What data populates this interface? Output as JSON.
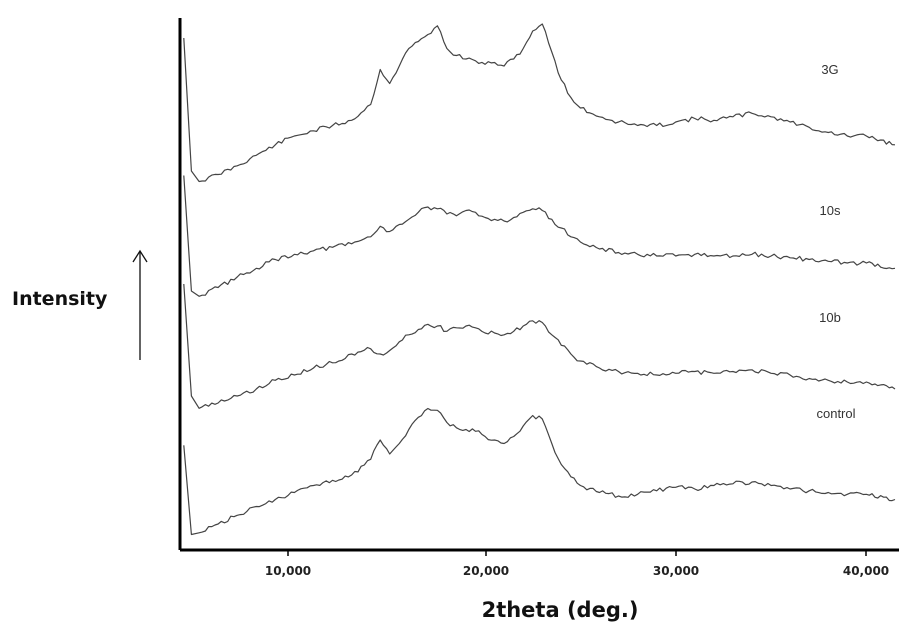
{
  "chart_data": {
    "type": "line",
    "xlabel": "2theta (deg.)",
    "ylabel": "Intensity",
    "xlim": [
      5,
      42.5
    ],
    "x_ticks": [
      10,
      20,
      30,
      40
    ],
    "x_tick_labels": [
      "10,000",
      "20,000",
      "30,000",
      "40,000"
    ],
    "y_scale": "arbitrary, stacked traces",
    "grid": false,
    "legend": "labels at right end of each trace",
    "color": "#444444",
    "series": [
      {
        "name": "3G",
        "offset": 3,
        "x": [
          5.2,
          5.6,
          6.0,
          7.0,
          8.0,
          9.0,
          10.0,
          11.0,
          12.0,
          13.0,
          14.0,
          15.0,
          15.5,
          16.0,
          16.5,
          17.0,
          17.5,
          18.0,
          18.5,
          19.0,
          19.5,
          20.0,
          20.5,
          21.0,
          21.5,
          22.0,
          22.5,
          23.0,
          23.5,
          24.0,
          24.5,
          25.0,
          25.5,
          26.0,
          27.0,
          28.0,
          29.0,
          30.0,
          31.0,
          32.0,
          33.0,
          34.0,
          35.0,
          36.0,
          37.0,
          38.0,
          39.0,
          40.0,
          41.0,
          42.5
        ],
        "y": [
          420,
          40,
          10,
          30,
          55,
          85,
          115,
          140,
          155,
          170,
          185,
          230,
          330,
          290,
          340,
          390,
          410,
          430,
          455,
          390,
          370,
          360,
          355,
          345,
          350,
          340,
          360,
          390,
          440,
          460,
          380,
          300,
          250,
          220,
          195,
          180,
          170,
          170,
          180,
          190,
          185,
          195,
          205,
          195,
          180,
          165,
          150,
          140,
          140,
          115
        ]
      },
      {
        "name": "10s",
        "offset": 2,
        "x": [
          5.2,
          5.6,
          6.0,
          7.0,
          8.0,
          9.0,
          10.0,
          11.0,
          12.0,
          13.0,
          14.0,
          15.0,
          15.5,
          16.0,
          16.5,
          17.0,
          17.5,
          18.0,
          18.5,
          19.0,
          19.5,
          20.0,
          20.5,
          21.0,
          21.5,
          22.0,
          22.5,
          23.0,
          23.5,
          24.0,
          24.5,
          25.0,
          25.5,
          26.0,
          27.0,
          28.0,
          29.0,
          30.0,
          31.0,
          32.0,
          33.0,
          34.0,
          35.0,
          36.0,
          37.0,
          38.0,
          39.0,
          40.0,
          41.0,
          42.5
        ],
        "y": [
          350,
          20,
          5,
          30,
          60,
          85,
          110,
          125,
          135,
          145,
          155,
          175,
          205,
          190,
          210,
          225,
          245,
          260,
          255,
          240,
          235,
          250,
          245,
          230,
          225,
          220,
          230,
          245,
          255,
          250,
          225,
          200,
          175,
          160,
          140,
          130,
          125,
          120,
          120,
          125,
          120,
          120,
          125,
          120,
          115,
          110,
          105,
          100,
          100,
          85
        ]
      },
      {
        "name": "10b",
        "offset": 1,
        "x": [
          5.2,
          5.6,
          6.0,
          7.0,
          8.0,
          9.0,
          10.0,
          11.0,
          12.0,
          13.0,
          14.0,
          15.0,
          15.5,
          16.0,
          16.5,
          17.0,
          17.5,
          18.0,
          18.5,
          19.0,
          19.5,
          20.0,
          20.5,
          21.0,
          21.5,
          22.0,
          22.5,
          23.0,
          23.5,
          24.0,
          24.5,
          25.0,
          25.5,
          26.0,
          27.0,
          28.0,
          29.0,
          30.0,
          31.0,
          32.0,
          33.0,
          34.0,
          35.0,
          36.0,
          37.0,
          38.0,
          39.0,
          40.0,
          41.0,
          42.5
        ],
        "y": [
          360,
          40,
          5,
          20,
          40,
          60,
          85,
          100,
          120,
          135,
          160,
          175,
          160,
          170,
          195,
          215,
          230,
          245,
          240,
          225,
          235,
          240,
          235,
          220,
          220,
          215,
          225,
          240,
          255,
          250,
          215,
          185,
          160,
          140,
          120,
          110,
          105,
          100,
          105,
          110,
          105,
          110,
          115,
          105,
          100,
          90,
          85,
          80,
          80,
          60
        ]
      },
      {
        "name": "control",
        "offset": 0,
        "x": [
          5.2,
          5.6,
          6.0,
          7.0,
          8.0,
          9.0,
          10.0,
          11.0,
          12.0,
          13.0,
          14.0,
          15.0,
          15.5,
          16.0,
          16.5,
          17.0,
          17.5,
          18.0,
          18.5,
          19.0,
          19.5,
          20.0,
          20.5,
          21.0,
          21.5,
          22.0,
          22.5,
          23.0,
          23.5,
          24.0,
          24.5,
          25.0,
          25.5,
          26.0,
          27.0,
          28.0,
          29.0,
          30.0,
          31.0,
          32.0,
          33.0,
          34.0,
          35.0,
          36.0,
          37.0,
          38.0,
          39.0,
          40.0,
          41.0,
          42.5
        ],
        "y": [
          265,
          10,
          15,
          40,
          65,
          90,
          110,
          130,
          150,
          165,
          180,
          225,
          280,
          240,
          270,
          310,
          345,
          370,
          365,
          330,
          315,
          310,
          305,
          290,
          280,
          270,
          290,
          320,
          350,
          340,
          270,
          210,
          175,
          150,
          130,
          120,
          125,
          135,
          145,
          140,
          150,
          155,
          160,
          150,
          140,
          135,
          130,
          125,
          125,
          110
        ]
      }
    ]
  }
}
